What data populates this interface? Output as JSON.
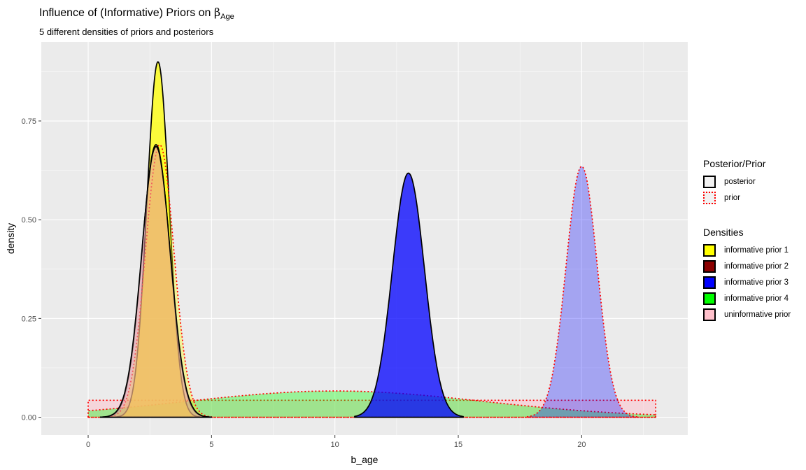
{
  "title": {
    "prefix": "Influence of (Informative) Priors on ",
    "symbol": "β",
    "subscript": "Age"
  },
  "subtitle": "5 different densities of priors and posteriors",
  "legend_type": {
    "title": "Posterior/Prior",
    "items": [
      {
        "label": "posterior",
        "linetype": "solid"
      },
      {
        "label": "prior",
        "linetype": "dotted"
      }
    ]
  },
  "legend_fill": {
    "title": "Densities",
    "items": [
      {
        "label": "informative prior 1",
        "color": "#ffff00"
      },
      {
        "label": "informative prior 2",
        "color": "#8b0000"
      },
      {
        "label": "informative prior 3",
        "color": "#0000ff"
      },
      {
        "label": "informative prior 4",
        "color": "#00ff00"
      },
      {
        "label": "uninformative prior",
        "color": "#ffc0cb"
      }
    ]
  },
  "chart_data": {
    "type": "area",
    "xlabel": "b_age",
    "ylabel": "density",
    "xlim": [
      -1.9,
      24.3
    ],
    "ylim": [
      -0.045,
      0.95
    ],
    "x_ticks": [
      0,
      5,
      10,
      15,
      20
    ],
    "y_ticks": [
      0.0,
      0.25,
      0.5,
      0.75
    ],
    "y_tick_labels": [
      "0.00",
      "0.25",
      "0.50",
      "0.75"
    ],
    "panel_background": "#ebebeb",
    "grid": true,
    "series": [
      {
        "fill_group": "uninformative prior",
        "kind": "prior",
        "shape": "uniform",
        "range": [
          0,
          23
        ],
        "value": 0.043,
        "color": "#ffc0cb",
        "alpha": 0.5
      },
      {
        "fill_group": "informative prior 4",
        "kind": "prior",
        "shape": "normal",
        "mean": 10,
        "sd": 6,
        "range": [
          0,
          23
        ],
        "color": "#00ff00",
        "alpha": 0.35
      },
      {
        "fill_group": "informative prior 1",
        "kind": "posterior",
        "shape": "normal",
        "mean": 2.83,
        "sd": 0.45,
        "peak": 0.9,
        "range": [
          0.7,
          4.8
        ],
        "color": "#ffff00",
        "alpha": 0.75
      },
      {
        "fill_group": "informative prior 1",
        "kind": "prior",
        "shape": "normal",
        "mean": 2.9,
        "sd": 0.58,
        "peak": 0.69,
        "range": [
          0.8,
          5.0
        ],
        "color": "#ffff00",
        "alpha": 0.35
      },
      {
        "fill_group": "informative prior 3",
        "kind": "posterior",
        "shape": "normal",
        "mean": 12.98,
        "sd": 0.65,
        "peak": 0.618,
        "range": [
          10.8,
          15.2
        ],
        "color": "#0000ff",
        "alpha": 0.75
      },
      {
        "fill_group": "informative prior 3",
        "kind": "prior",
        "shape": "normal",
        "mean": 20.0,
        "sd": 0.63,
        "peak": 0.635,
        "range": [
          17.8,
          22.3
        ],
        "color": "#0000ff",
        "alpha": 0.3
      },
      {
        "fill_group": "informative prior 2",
        "kind": "posterior",
        "shape": "normal",
        "mean": 2.75,
        "sd": 0.57,
        "peak": 0.69,
        "range": [
          0.5,
          5.0
        ],
        "color": "#8b0000",
        "alpha": 0.22
      },
      {
        "fill_group": "uninformative prior",
        "kind": "posterior",
        "shape": "normal",
        "mean": 2.75,
        "sd": 0.58,
        "peak": 0.685,
        "range": [
          0.5,
          5.0
        ],
        "color": "#ffc0cb",
        "alpha": 0.45
      }
    ]
  }
}
